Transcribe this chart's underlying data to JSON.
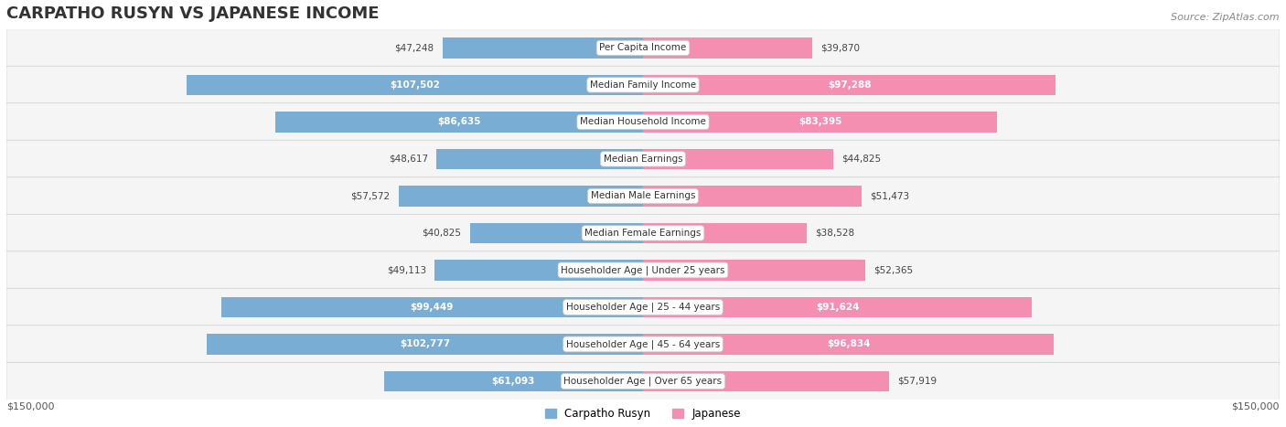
{
  "title": "CARPATHO RUSYN VS JAPANESE INCOME",
  "source": "Source: ZipAtlas.com",
  "categories": [
    "Per Capita Income",
    "Median Family Income",
    "Median Household Income",
    "Median Earnings",
    "Median Male Earnings",
    "Median Female Earnings",
    "Householder Age | Under 25 years",
    "Householder Age | 25 - 44 years",
    "Householder Age | 45 - 64 years",
    "Householder Age | Over 65 years"
  ],
  "carpatho_rusyn": [
    47248,
    107502,
    86635,
    48617,
    57572,
    40825,
    49113,
    99449,
    102777,
    61093
  ],
  "japanese": [
    39870,
    97288,
    83395,
    44825,
    51473,
    38528,
    52365,
    91624,
    96834,
    57919
  ],
  "max_val": 150000,
  "blue_color": "#7aadd4",
  "pink_color": "#f48fb1",
  "blue_dark": "#5b8fc7",
  "pink_dark": "#f06292",
  "bg_row_color": "#f0f0f0",
  "label_bg_color": "#ffffff",
  "bar_height": 0.55,
  "row_bg_alpha": 0.5
}
